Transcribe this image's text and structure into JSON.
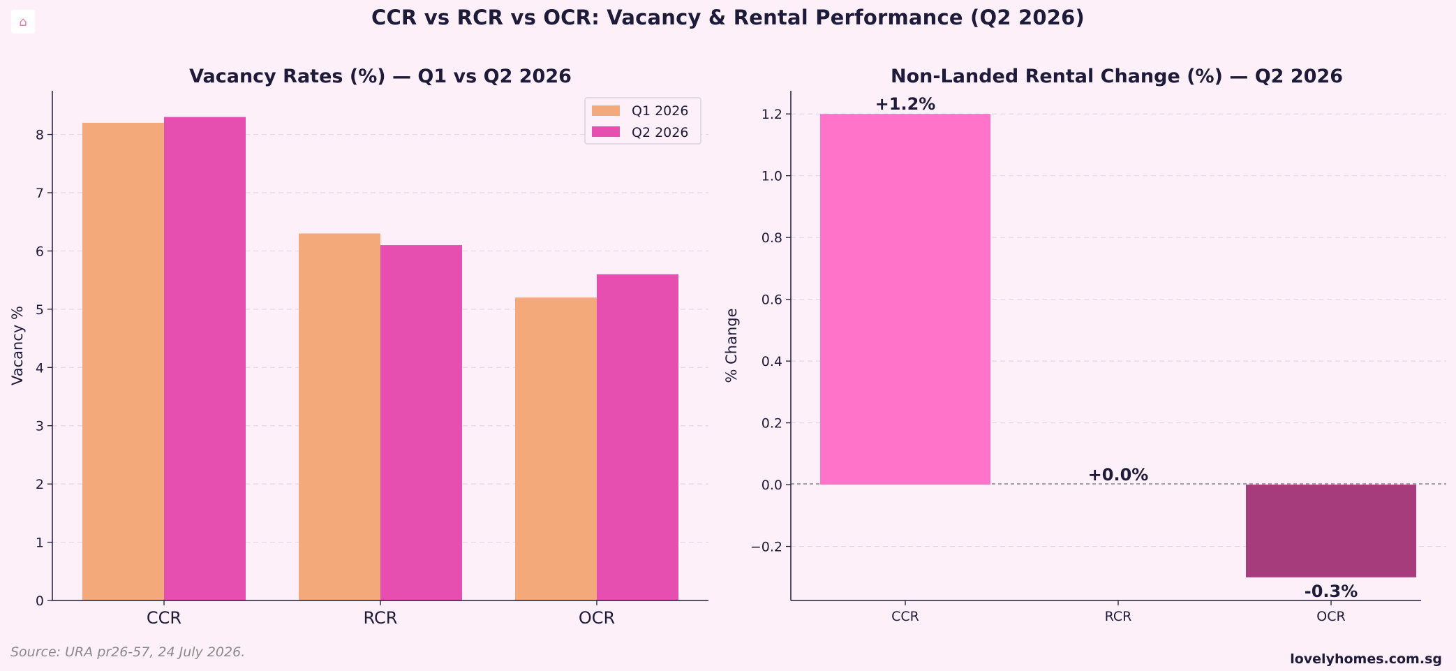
{
  "page": {
    "title": "CCR vs RCR vs OCR: Vacancy & Rental Performance (Q2 2026)",
    "home_icon": "home-icon",
    "source": "Source: URA pr26-57, 24 July 2026.",
    "brand": "lovelyhomes.com.sg"
  },
  "colors": {
    "background": "#fdf0f8",
    "q1": "#f4a97a",
    "q2": "#e64faf",
    "positive": "#ff73c8",
    "negative": "#a63c7c",
    "text": "#1e1b3a"
  },
  "chart_data": [
    {
      "type": "bar",
      "title": "Vacancy Rates (%) — Q1 vs Q2 2026",
      "ylabel": "Vacancy %",
      "xlabel": "",
      "categories": [
        "CCR",
        "RCR",
        "OCR"
      ],
      "series": [
        {
          "name": "Q1 2026",
          "values": [
            8.2,
            6.3,
            5.2
          ]
        },
        {
          "name": "Q2 2026",
          "values": [
            8.3,
            6.1,
            5.6
          ]
        }
      ],
      "ylim": [
        0,
        8.75
      ],
      "yticks": [
        "0",
        "1",
        "2",
        "3",
        "4",
        "5",
        "6",
        "7",
        "8"
      ],
      "grid": true,
      "legend": "top-right"
    },
    {
      "type": "bar",
      "title": "Non-Landed Rental Change (%) — Q2 2026",
      "ylabel": "% Change",
      "xlabel": "",
      "categories": [
        "CCR",
        "RCR",
        "OCR"
      ],
      "values": [
        1.2,
        0.0,
        -0.3
      ],
      "data_labels": [
        "+1.2%",
        "+0.0%",
        "-0.3%"
      ],
      "ylim": [
        -0.375,
        1.275
      ],
      "yticks": [
        "−0.2",
        "0.0",
        "0.2",
        "0.4",
        "0.6",
        "0.8",
        "1.0",
        "1.2"
      ],
      "grid": true,
      "zero_line": true
    }
  ]
}
